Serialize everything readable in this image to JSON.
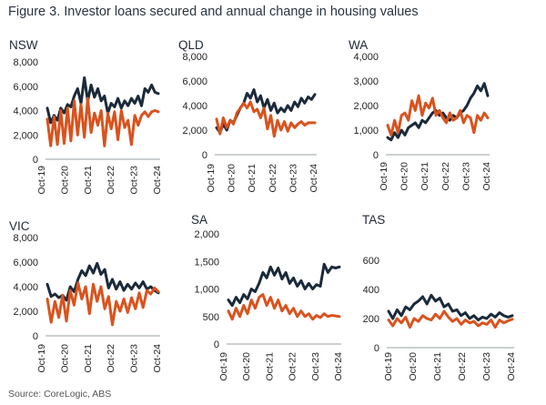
{
  "title": "Figure 3. Investor loans secured and annual change in housing values",
  "source": "Source: CoreLogic, ABS",
  "colors": {
    "navy": "#1b2a3a",
    "orange": "#d9531e",
    "axis": "#9aa0a6"
  },
  "chart_data": [
    {
      "type": "line",
      "title": "NSW",
      "yticks": [
        "0",
        "2,000",
        "4,000",
        "6,000",
        "8,000"
      ],
      "ylim": [
        0,
        8000
      ],
      "xticks": [
        "Oct-19",
        "Oct-20",
        "Oct-21",
        "Oct-22",
        "Oct-23",
        "Oct-24"
      ],
      "series": [
        {
          "color": "#1b2a3a",
          "values": [
            4200,
            3000,
            3600,
            3200,
            4200,
            3800,
            4500,
            4300,
            5200,
            5800,
            4600,
            6700,
            4800,
            6100,
            5100,
            5800,
            4800,
            5200,
            3800,
            4600,
            4300,
            5000,
            4200,
            4800,
            4400,
            5000,
            4600,
            5200,
            4400,
            5800,
            5500,
            6100,
            5500,
            5400
          ]
        },
        {
          "color": "#d9531e",
          "values": [
            3300,
            1100,
            3500,
            1200,
            4000,
            1300,
            4200,
            1500,
            4800,
            2000,
            4500,
            1800,
            5000,
            2200,
            3800,
            2800,
            4000,
            1100,
            3800,
            2500,
            3900,
            1600,
            4000,
            2600,
            3200,
            1200,
            3600,
            2800,
            3600,
            3900,
            3500,
            3900,
            4000,
            3900
          ]
        }
      ]
    },
    {
      "type": "line",
      "title": "QLD",
      "yticks": [
        "0",
        "2,000",
        "4,000",
        "6,000",
        "8,000"
      ],
      "ylim": [
        0,
        8000
      ],
      "xticks": [
        "Oct-19",
        "Oct-20",
        "Oct-21",
        "Oct-22",
        "Oct-23",
        "Oct-24"
      ],
      "series": [
        {
          "color": "#1b2a3a",
          "values": [
            2200,
            1800,
            2500,
            2000,
            2800,
            2600,
            3200,
            3800,
            4200,
            5000,
            4600,
            5300,
            4300,
            4800,
            3800,
            4500,
            3600,
            4200,
            3400,
            3800,
            3500,
            4000,
            3600,
            4300,
            3900,
            4600,
            4200,
            4700,
            4500,
            4900
          ]
        },
        {
          "color": "#d9531e",
          "values": [
            2900,
            1700,
            3000,
            2200,
            2800,
            2500,
            3400,
            3800,
            4200,
            3800,
            4300,
            3500,
            3700,
            3000,
            3800,
            2100,
            3200,
            1500,
            2800,
            2000,
            2700,
            1900,
            2600,
            2200,
            2500,
            2700,
            2400,
            2600,
            2600,
            2600
          ]
        }
      ]
    },
    {
      "type": "line",
      "title": "WA",
      "yticks": [
        "0",
        "1,000",
        "2,000",
        "3,000",
        "4,000"
      ],
      "ylim": [
        0,
        4000
      ],
      "xticks": [
        "Oct-19",
        "Oct-20",
        "Oct-21",
        "Oct-22",
        "Oct-23",
        "Oct-24"
      ],
      "series": [
        {
          "color": "#1b2a3a",
          "values": [
            700,
            600,
            900,
            700,
            1000,
            800,
            1100,
            1200,
            1300,
            1100,
            1400,
            1300,
            1500,
            1700,
            1800,
            1600,
            1700,
            1500,
            1400,
            1600,
            1500,
            1700,
            1800,
            2000,
            2300,
            2500,
            2800,
            2600,
            2900,
            2400
          ]
        },
        {
          "color": "#d9531e",
          "values": [
            1200,
            800,
            1400,
            900,
            1600,
            1700,
            1400,
            2200,
            1800,
            2400,
            1600,
            2100,
            1900,
            2300,
            1600,
            1800,
            1500,
            1300,
            1700,
            1400,
            1500,
            1800,
            1300,
            1600,
            1500,
            900,
            1600,
            1400,
            1700,
            1500
          ]
        }
      ]
    },
    {
      "type": "line",
      "title": "VIC",
      "yticks": [
        "0",
        "2,000",
        "4,000",
        "6,000",
        "8,000"
      ],
      "ylim": [
        0,
        8000
      ],
      "xticks": [
        "Oct-19",
        "Oct-20",
        "Oct-21",
        "Oct-22",
        "Oct-23",
        "Oct-24"
      ],
      "series": [
        {
          "color": "#1b2a3a",
          "values": [
            4200,
            3200,
            3400,
            3100,
            3300,
            2900,
            4000,
            3600,
            4600,
            5300,
            4900,
            5700,
            5100,
            5900,
            5000,
            5400,
            3900,
            4600,
            3800,
            4400,
            3700,
            4200,
            3800,
            4300,
            3900,
            4400,
            3800,
            4000,
            3700,
            3500
          ]
        },
        {
          "color": "#d9531e",
          "values": [
            3000,
            1100,
            2800,
            1500,
            3300,
            1200,
            3700,
            2500,
            4300,
            3000,
            4000,
            1800,
            4200,
            2800,
            4000,
            2200,
            3200,
            900,
            2800,
            2000,
            3000,
            1900,
            3100,
            2200,
            3500,
            2300,
            3700,
            3400,
            3900,
            3600
          ]
        }
      ]
    },
    {
      "type": "line",
      "title": "SA",
      "yticks": [
        "0",
        "500",
        "1,000",
        "1,500",
        "2,000"
      ],
      "ylim": [
        0,
        2000
      ],
      "xticks": [
        "Oct-19",
        "Oct-20",
        "Oct-21",
        "Oct-22",
        "Oct-23",
        "Oct-24"
      ],
      "series": [
        {
          "color": "#1b2a3a",
          "values": [
            800,
            700,
            850,
            750,
            900,
            820,
            1000,
            950,
            1100,
            1300,
            1200,
            1400,
            1250,
            1380,
            1180,
            1300,
            1100,
            1200,
            1050,
            1150,
            1000,
            1100,
            1000,
            1080,
            1050,
            1450,
            1300,
            1400,
            1380,
            1400
          ]
        },
        {
          "color": "#d9531e",
          "values": [
            600,
            450,
            650,
            500,
            700,
            550,
            800,
            650,
            850,
            900,
            700,
            850,
            650,
            800,
            600,
            700,
            550,
            650,
            500,
            600,
            500,
            550,
            450,
            520,
            480,
            550,
            500,
            520,
            510,
            500
          ]
        }
      ]
    },
    {
      "type": "line",
      "title": "TAS",
      "yticks": [
        "0",
        "200",
        "400",
        "600"
      ],
      "ylim": [
        0,
        700
      ],
      "xticks": [
        "Oct-19",
        "Oct-20",
        "Oct-21",
        "Oct-22",
        "Oct-23",
        "Oct-24"
      ],
      "series": [
        {
          "color": "#1b2a3a",
          "values": [
            250,
            200,
            260,
            220,
            280,
            260,
            300,
            320,
            350,
            300,
            360,
            320,
            340,
            280,
            300,
            250,
            260,
            220,
            240,
            200,
            220,
            190,
            210,
            200,
            230,
            210,
            240,
            220,
            210,
            220
          ]
        },
        {
          "color": "#d9531e",
          "values": [
            190,
            150,
            200,
            170,
            210,
            140,
            200,
            180,
            220,
            200,
            190,
            230,
            200,
            250,
            210,
            180,
            200,
            160,
            190,
            170,
            180,
            150,
            170,
            160,
            190,
            140,
            190,
            170,
            185,
            195
          ]
        }
      ]
    }
  ]
}
